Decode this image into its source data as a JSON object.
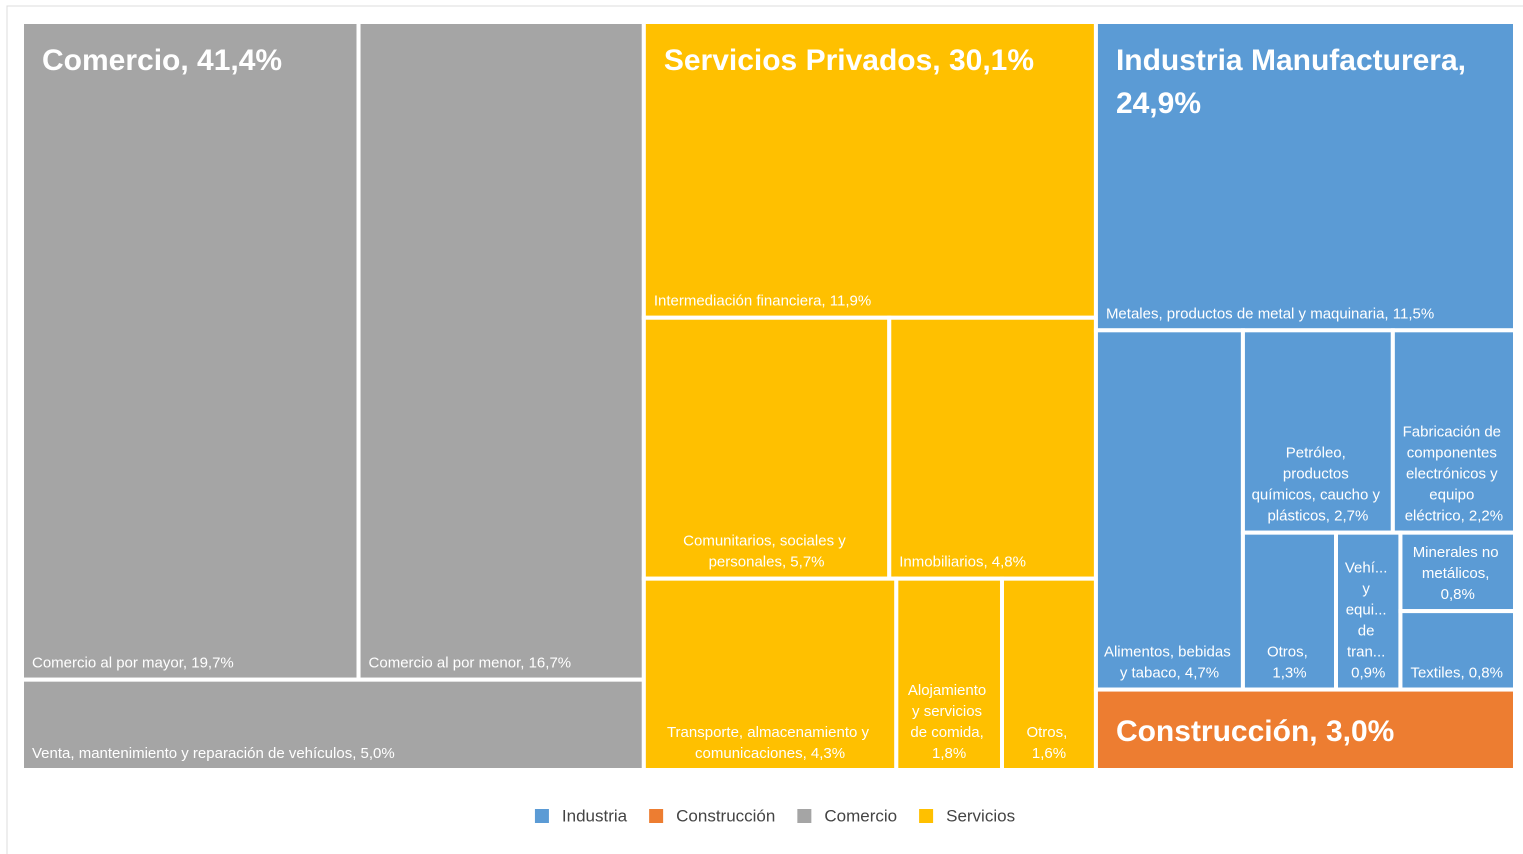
{
  "chart_data": {
    "type": "treemap",
    "legend_position": "bottom",
    "series": [
      {
        "name": "Industria",
        "color": "#5b9bd5",
        "value": 24.9,
        "value_label": "Industria Manufacturera, 24,9%",
        "values": [
          11.5,
          4.7,
          2.7,
          2.2,
          1.3,
          0.9,
          0.8,
          0.8
        ],
        "value_labels": [
          "Metales, productos de metal y maquinaria, 11,5%",
          "Alimentos, bebidas y tabaco, 4,7%",
          "Petróleo, productos químicos, caucho y plásticos, 2,7%",
          "Fabricación de componentes electrónicos y equipo eléctrico, 2,2%",
          "Otros, 1,3%",
          "Vehí... y equi... de tran... 0,9%",
          "Minerales no metálicos, 0,8%",
          "Textiles, 0,8%"
        ]
      },
      {
        "name": "Construcción",
        "color": "#ed7d31",
        "value": 3.0,
        "value_label": "Construcción, 3,0%"
      },
      {
        "name": "Comercio",
        "color": "#a5a5a5",
        "value": 41.4,
        "value_label": "Comercio, 41,4%",
        "values": [
          19.7,
          16.7,
          5.0
        ],
        "value_labels": [
          "Comercio al por mayor, 19,7%",
          "Comercio al por menor, 16,7%",
          "Venta, mantenimiento y reparación de vehículos, 5,0%"
        ]
      },
      {
        "name": "Servicios",
        "color": "#ffc000",
        "value": 30.1,
        "value_label": "Servicios Privados, 30,1%",
        "values": [
          11.9,
          5.7,
          4.8,
          4.3,
          1.8,
          1.6
        ],
        "value_labels": [
          "Intermediación financiera, 11,9%",
          "Comunitarios, sociales y personales, 5,7%",
          "Inmobiliarios, 4,8%",
          "Transporte, almacenamiento y comunicaciones, 4,3%",
          "Alojamiento y servicios de comida, 1,8%",
          "Otros, 1,6%"
        ]
      }
    ]
  }
}
